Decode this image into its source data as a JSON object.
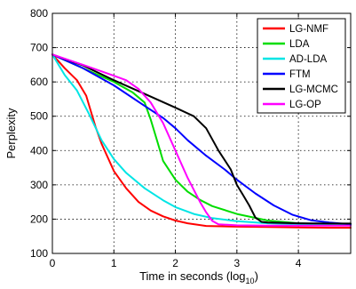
{
  "chart_data": {
    "type": "line",
    "title": "",
    "xlabel": "Time in seconds (log",
    "xlabel_sub": "10",
    "xlabel_close": ")",
    "ylabel": "Perplexity",
    "xlim": [
      0,
      4.85
    ],
    "ylim": [
      100,
      800
    ],
    "xticks": [
      0,
      1,
      2,
      3,
      4
    ],
    "yticks": [
      100,
      200,
      300,
      400,
      500,
      600,
      700,
      800
    ],
    "grid": "dotted",
    "legend_position": "top-right",
    "series": [
      {
        "name": "LG-NMF",
        "color": "#ff0000",
        "x": [
          0,
          0.2,
          0.4,
          0.55,
          0.7,
          0.8,
          1.0,
          1.2,
          1.4,
          1.6,
          1.8,
          2.0,
          2.2,
          2.5,
          3.0,
          3.5,
          4.0,
          4.5,
          4.85
        ],
        "y": [
          680,
          640,
          605,
          560,
          470,
          420,
          340,
          290,
          250,
          225,
          208,
          196,
          188,
          180,
          178,
          177,
          176,
          175,
          175
        ]
      },
      {
        "name": "LDA",
        "color": "#00dd00",
        "x": [
          0,
          0.5,
          1.0,
          1.3,
          1.5,
          1.6,
          1.7,
          1.8,
          2.0,
          2.2,
          2.4,
          2.6,
          3.0,
          3.5,
          4.0,
          4.5,
          4.85
        ],
        "y": [
          680,
          640,
          600,
          570,
          540,
          490,
          430,
          370,
          315,
          280,
          256,
          238,
          215,
          196,
          188,
          185,
          184
        ]
      },
      {
        "name": "AD-LDA",
        "color": "#00e5e5",
        "x": [
          0,
          0.2,
          0.4,
          0.6,
          0.8,
          1.0,
          1.2,
          1.5,
          1.8,
          2.0,
          2.3,
          2.6,
          3.0,
          3.5,
          4.0,
          4.5,
          4.85
        ],
        "y": [
          680,
          620,
          575,
          505,
          430,
          375,
          335,
          290,
          255,
          235,
          215,
          203,
          194,
          188,
          185,
          184,
          184
        ]
      },
      {
        "name": "FTM",
        "color": "#0000ff",
        "x": [
          0,
          0.5,
          1.0,
          1.5,
          1.8,
          2.0,
          2.2,
          2.5,
          2.8,
          3.0,
          3.3,
          3.6,
          3.9,
          4.2,
          4.5,
          4.85
        ],
        "y": [
          680,
          640,
          590,
          530,
          495,
          465,
          430,
          385,
          345,
          315,
          275,
          240,
          213,
          197,
          190,
          185
        ]
      },
      {
        "name": "LG-MCMC",
        "color": "#000000",
        "x": [
          0,
          0.5,
          1.0,
          1.5,
          2.0,
          2.3,
          2.5,
          2.7,
          2.9,
          3.0,
          3.1,
          3.2,
          3.3,
          3.4,
          3.5,
          4.0,
          4.5,
          4.85
        ],
        "y": [
          680,
          648,
          605,
          565,
          525,
          500,
          465,
          400,
          345,
          300,
          270,
          240,
          205,
          192,
          190,
          188,
          187,
          187
        ]
      },
      {
        "name": "LG-OP",
        "color": "#ff00ff",
        "x": [
          0,
          0.5,
          1.0,
          1.2,
          1.4,
          1.6,
          1.8,
          2.0,
          2.2,
          2.4,
          2.5,
          2.6,
          2.7,
          3.0,
          3.5,
          4.0,
          4.5,
          4.85
        ],
        "y": [
          680,
          650,
          618,
          605,
          580,
          540,
          480,
          400,
          320,
          250,
          220,
          195,
          185,
          182,
          181,
          181,
          181,
          181
        ]
      }
    ]
  }
}
